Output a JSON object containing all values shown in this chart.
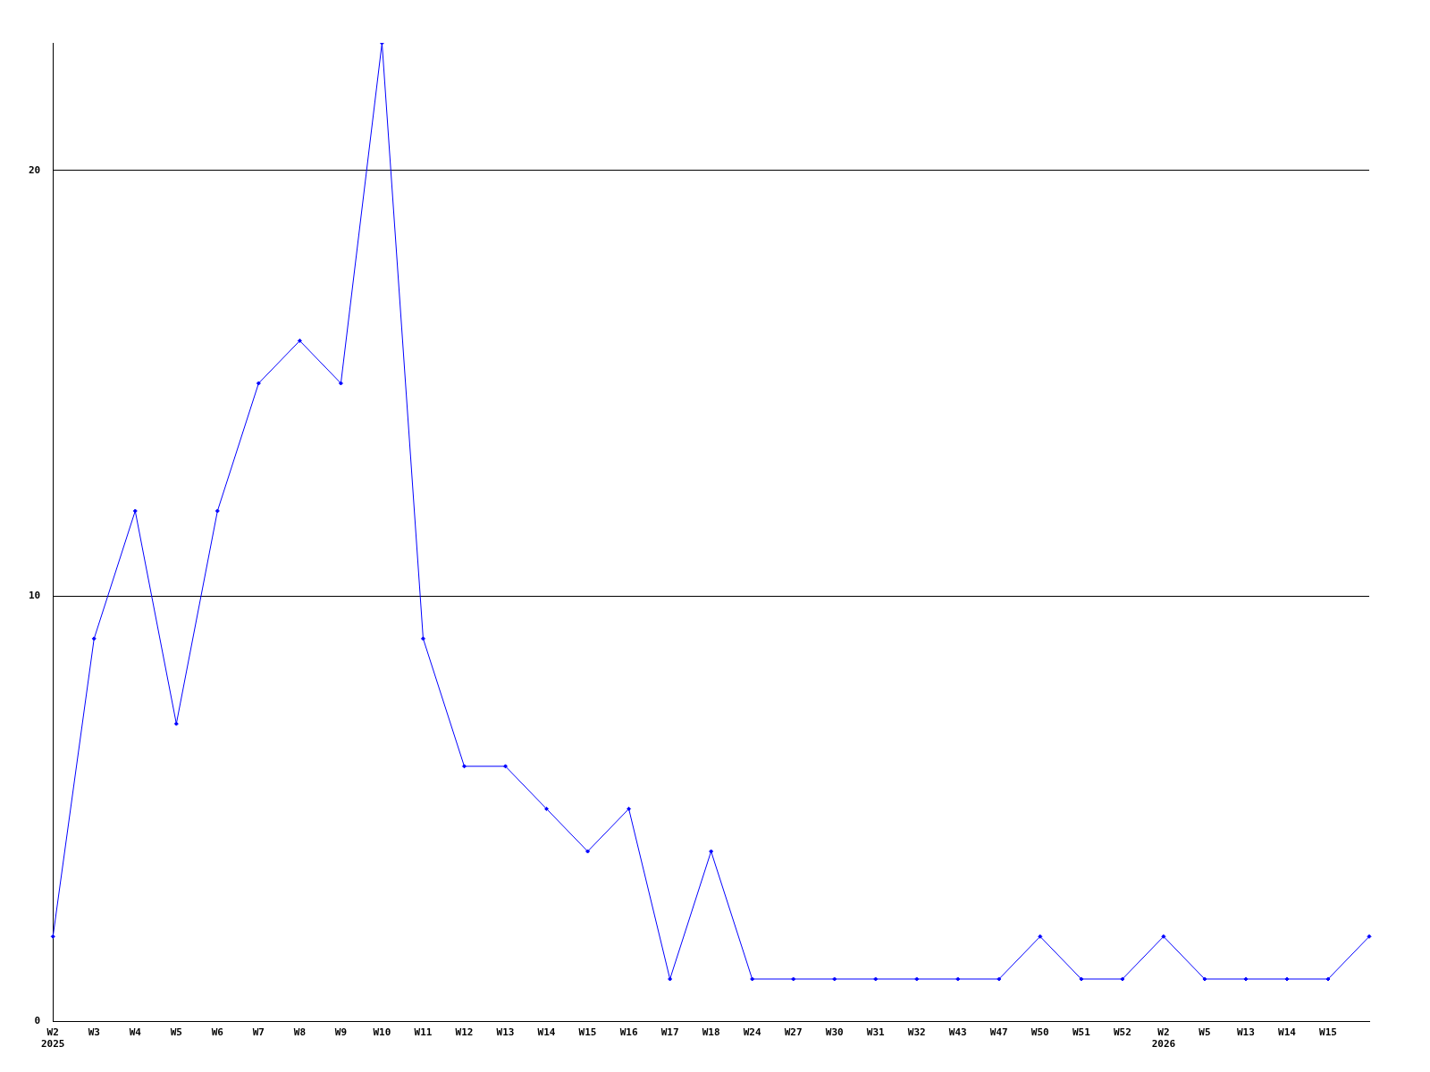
{
  "chart_data": {
    "type": "line",
    "categories": [
      "W2\n2025",
      "W3",
      "W4",
      "W5",
      "W6",
      "W7",
      "W8",
      "W9",
      "W10",
      "W11",
      "W12",
      "W13",
      "W14",
      "W15",
      "W16",
      "W17",
      "W18",
      "W24",
      "W27",
      "W30",
      "W31",
      "W32",
      "W43",
      "W47",
      "W50",
      "W51",
      "W52",
      "W2\n2026",
      "W5",
      "W13",
      "W14",
      "W15",
      null
    ],
    "series": [
      {
        "color": "#0000ff",
        "values": [
          2,
          9,
          12,
          7,
          12,
          15,
          16,
          15,
          23,
          9,
          6,
          6,
          5,
          4,
          5,
          1,
          4,
          1,
          1,
          1,
          1,
          1,
          1,
          1,
          2,
          1,
          1,
          2,
          1,
          1,
          1,
          1,
          2
        ]
      }
    ],
    "ylim": [
      0,
      23
    ],
    "yticks": [
      0,
      10,
      20
    ],
    "grid": "y",
    "legend": false,
    "marker": "diamond",
    "line_style": "solid"
  }
}
